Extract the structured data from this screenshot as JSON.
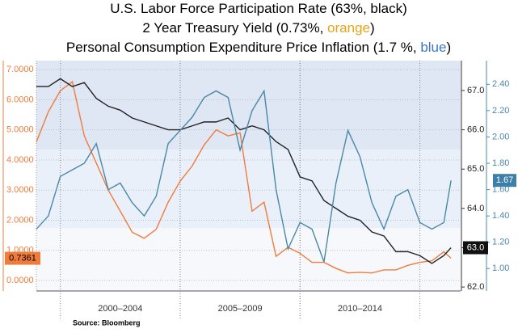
{
  "chart_data": {
    "type": "line",
    "title": [
      [
        "U.S. Labor Force Participation Rate (63%, black)"
      ],
      [
        "2 Year Treasury Yield (0.73%, ",
        "orange",
        ")"
      ],
      [
        "Personal Consumption Expenditure Price Inflation (1.7 %, ",
        "blue",
        ")"
      ]
    ],
    "title_colors": [
      [
        null
      ],
      [
        null,
        "#e8a317",
        null
      ],
      [
        null,
        "#3a78c4",
        null
      ]
    ],
    "source": "Source: Bloomberg",
    "x": [
      1999,
      1999.5,
      2000,
      2000.5,
      2001,
      2001.5,
      2002,
      2002.5,
      2003,
      2003.5,
      2004,
      2004.5,
      2005,
      2005.5,
      2006,
      2006.5,
      2007,
      2007.5,
      2008,
      2008.5,
      2009,
      2009.5,
      2010,
      2010.5,
      2011,
      2011.5,
      2012,
      2012.5,
      2013,
      2013.5,
      2014,
      2014.5,
      2015,
      2015.5,
      2016,
      2016.3
    ],
    "xlim": [
      1999,
      2016.7
    ],
    "x_bands": [
      {
        "label": "2000–2004",
        "from": 2000,
        "to": 2005
      },
      {
        "label": "2005–2009",
        "from": 2005,
        "to": 2010
      },
      {
        "label": "2010–2014",
        "from": 2010,
        "to": 2015
      }
    ],
    "ylim": [
      -0.35,
      7.3
    ],
    "yticks": [
      {
        "value": 0,
        "label": "0.0000"
      },
      {
        "value": 1,
        "label": "1.0000"
      },
      {
        "value": 2,
        "label": "2.0000"
      },
      {
        "value": 3,
        "label": "3.0000"
      },
      {
        "value": 4,
        "label": "4.0000"
      },
      {
        "value": 5,
        "label": "5.0000"
      },
      {
        "value": 6,
        "label": "6.0000"
      },
      {
        "value": 7,
        "label": "7.0000"
      }
    ],
    "y2lim": [
      61.9,
      67.76
    ],
    "y2ticks": [
      {
        "value": 62,
        "label": "62.0"
      },
      {
        "value": 63,
        "label": "63.0"
      },
      {
        "value": 64,
        "label": "64.0"
      },
      {
        "value": 65,
        "label": "65.0"
      },
      {
        "value": 66,
        "label": "66.0"
      },
      {
        "value": 67,
        "label": "67.0"
      }
    ],
    "y3lim": [
      0.83,
      2.58
    ],
    "y3ticks": [
      {
        "value": 1,
        "label": "1.00"
      },
      {
        "value": 1.2,
        "label": "1.20"
      },
      {
        "value": 1.4,
        "label": "1.40"
      },
      {
        "value": 1.6,
        "label": "1.60"
      },
      {
        "value": 1.8,
        "label": "1.80"
      },
      {
        "value": 2,
        "label": "2.00"
      },
      {
        "value": 2.2,
        "label": "2.20"
      },
      {
        "value": 2.4,
        "label": "2.40"
      }
    ],
    "grid": true,
    "series": [
      {
        "color": "#f07c3c",
        "axis": "y",
        "callout": {
          "value": 0.7361,
          "label": "0.7361"
        },
        "values": [
          4.6,
          5.6,
          6.3,
          6.6,
          4.8,
          3.9,
          3.0,
          2.3,
          1.6,
          1.4,
          1.7,
          2.6,
          3.3,
          3.8,
          4.5,
          5.0,
          4.8,
          4.9,
          2.3,
          2.6,
          0.8,
          1.1,
          0.9,
          0.6,
          0.6,
          0.4,
          0.25,
          0.27,
          0.25,
          0.35,
          0.35,
          0.5,
          0.6,
          0.65,
          0.95,
          0.74
        ]
      },
      {
        "color": "#222222",
        "axis": "y2",
        "callout": {
          "value": 63,
          "label": "63.0"
        },
        "values": [
          67.1,
          67.1,
          67.3,
          67.1,
          67.2,
          66.8,
          66.6,
          66.5,
          66.3,
          66.2,
          66.1,
          66.0,
          66.0,
          66.1,
          66.2,
          66.2,
          66.3,
          66.0,
          66.1,
          66.0,
          65.7,
          65.5,
          64.8,
          64.7,
          64.2,
          64.0,
          63.8,
          63.7,
          63.4,
          63.3,
          62.9,
          62.9,
          62.8,
          62.6,
          62.8,
          63.0
        ]
      },
      {
        "color": "#4a88a8",
        "axis": "y3",
        "callout": {
          "value": 1.67,
          "label": "1.67"
        },
        "values": [
          1.3,
          1.4,
          1.7,
          1.75,
          1.8,
          1.95,
          1.6,
          1.65,
          1.5,
          1.4,
          1.55,
          1.95,
          2.05,
          2.15,
          2.3,
          2.35,
          2.3,
          1.9,
          2.2,
          2.35,
          1.6,
          1.15,
          1.35,
          1.3,
          1.05,
          1.65,
          2.05,
          1.85,
          1.5,
          1.3,
          1.55,
          1.6,
          1.35,
          1.3,
          1.35,
          1.67
        ]
      }
    ]
  }
}
